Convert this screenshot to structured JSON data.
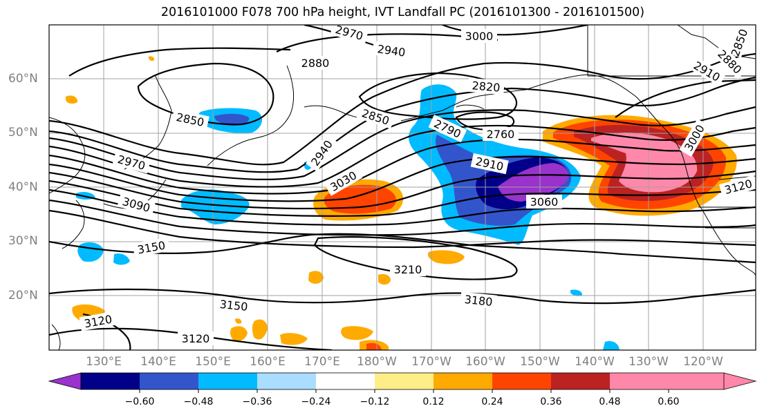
{
  "title": "2016101000 F078 700 hPa height, IVT Landfall PC (2016101300 - 2016101500)",
  "lat_labels": [
    "60°N",
    "50°N",
    "40°N",
    "30°N",
    "20°N"
  ],
  "lon_labels": [
    "130°E",
    "140°E",
    "150°E",
    "160°E",
    "170°E",
    "180°W",
    "170°W",
    "160°W",
    "150°W",
    "140°W",
    "130°W",
    "120°W"
  ],
  "contour_labels": [
    "2970",
    "3000",
    "2940",
    "2880",
    "2850",
    "2820",
    "2790",
    "2760",
    "2850",
    "2940",
    "3030",
    "2970",
    "3090",
    "2910",
    "3060",
    "3150",
    "3210",
    "3180",
    "3150",
    "3120",
    "3120",
    "3120",
    "2880",
    "2910",
    "2850",
    "3000"
  ],
  "colorbar": {
    "colors": [
      "#9933cc",
      "#000088",
      "#3355cc",
      "#00bbff",
      "#aaddff",
      "#ffffff",
      "#ffee88",
      "#ffaa00",
      "#ff4400",
      "#bb2222",
      "#ff88aa"
    ],
    "ticks": [
      "−0.60",
      "−0.48",
      "−0.36",
      "−0.24",
      "−0.12",
      "0.12",
      "0.24",
      "0.36",
      "0.48",
      "0.60"
    ]
  }
}
